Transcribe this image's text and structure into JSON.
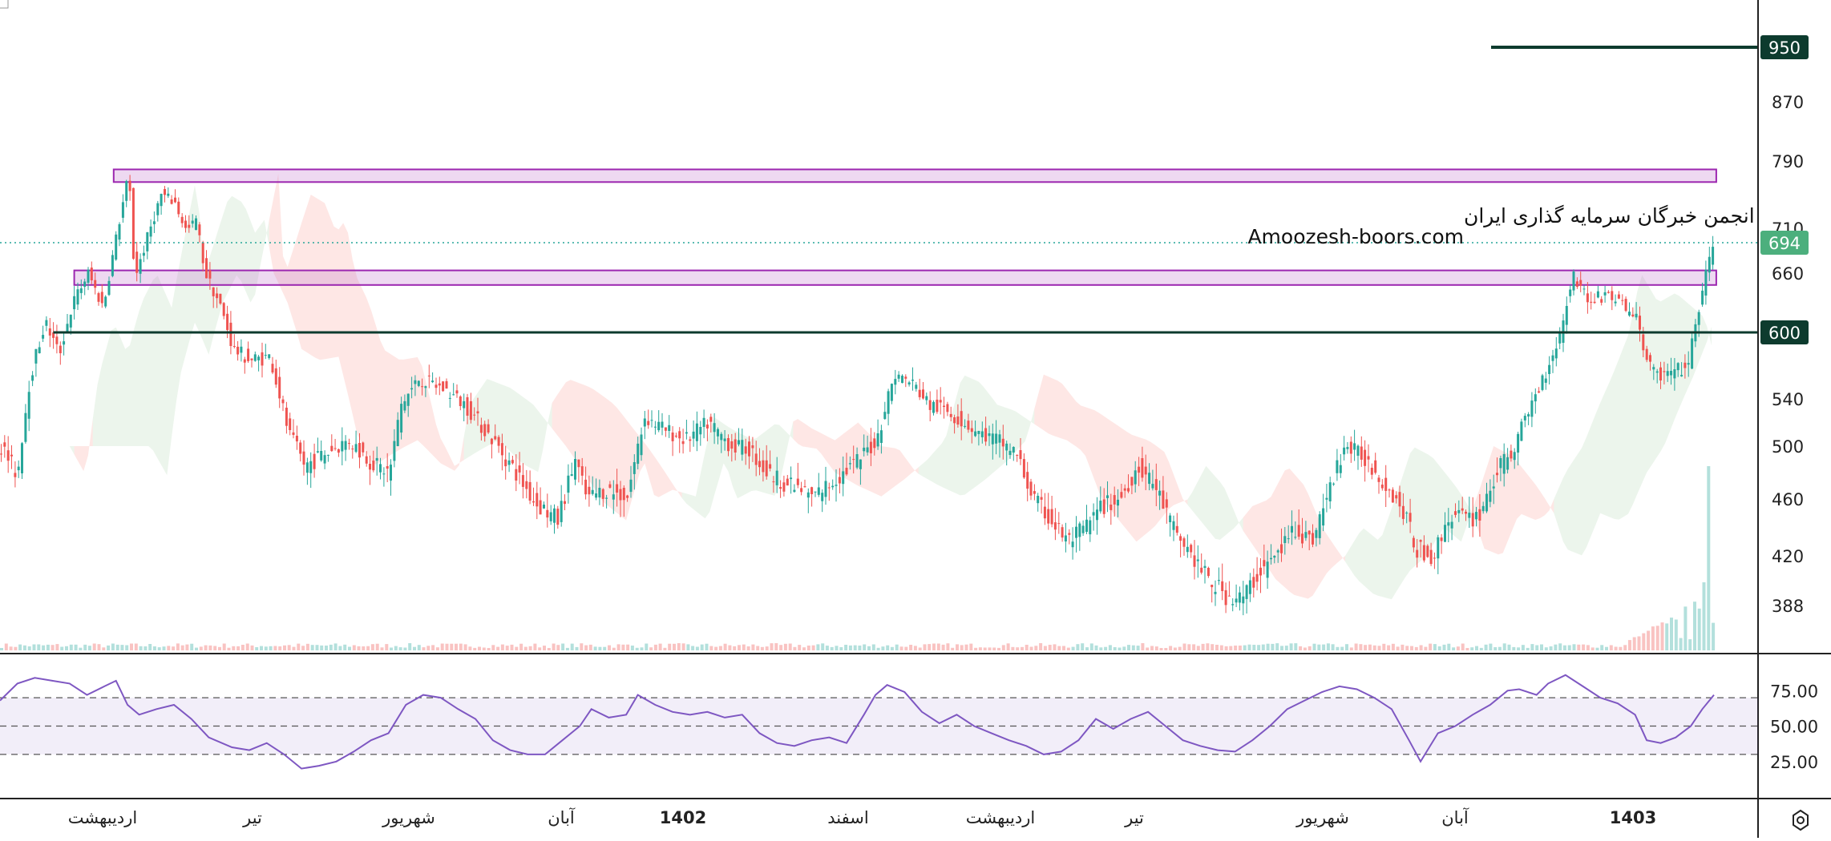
{
  "chart_data": [
    {
      "type": "candlestick",
      "title": "",
      "overlays": [
        "ichimoku-cloud",
        "volume",
        "horizontal-levels"
      ],
      "watermark": {
        "line1": "انجمن خبرگان سرمایه گذاری ایران",
        "line2": "Amoozesh-boors.com"
      },
      "price_axis": {
        "ticks": [
          "870",
          "790",
          "710",
          "660",
          "540",
          "500",
          "460",
          "420",
          "388"
        ],
        "ylim": [
          355,
          975
        ]
      },
      "time_axis": {
        "ticks": [
          "اردیبهشت",
          "تیر",
          "شهریور",
          "آبان",
          "1402",
          "اسفند",
          "اردیبهشت",
          "تیر",
          "شهریور",
          "آبان",
          "1403"
        ],
        "bold_ticks": [
          "1402",
          "1403"
        ]
      },
      "levels": [
        {
          "name": "resistance-950",
          "price": 950,
          "label": "950"
        },
        {
          "name": "support-600",
          "price": 600,
          "label": "600"
        },
        {
          "name": "last-price",
          "price": 694,
          "label": "694"
        }
      ],
      "zones": [
        {
          "name": "upper-zone",
          "from": 765,
          "to": 780
        },
        {
          "name": "middle-zone",
          "from": 648,
          "to": 663
        }
      ],
      "close_path": [
        [
          0,
          500
        ],
        [
          14,
          478
        ],
        [
          25,
          560
        ],
        [
          38,
          610
        ],
        [
          50,
          580
        ],
        [
          62,
          630
        ],
        [
          75,
          660
        ],
        [
          88,
          625
        ],
        [
          100,
          705
        ],
        [
          110,
          775
        ],
        [
          115,
          655
        ],
        [
          125,
          695
        ],
        [
          138,
          750
        ],
        [
          150,
          740
        ],
        [
          160,
          705
        ],
        [
          168,
          720
        ],
        [
          176,
          660
        ],
        [
          188,
          630
        ],
        [
          200,
          585
        ],
        [
          215,
          575
        ],
        [
          232,
          578
        ],
        [
          248,
          510
        ],
        [
          262,
          485
        ],
        [
          280,
          495
        ],
        [
          300,
          505
        ],
        [
          320,
          487
        ],
        [
          335,
          480
        ],
        [
          345,
          535
        ],
        [
          360,
          558
        ],
        [
          380,
          550
        ],
        [
          400,
          535
        ],
        [
          420,
          510
        ],
        [
          440,
          485
        ],
        [
          460,
          458
        ],
        [
          480,
          445
        ],
        [
          495,
          490
        ],
        [
          505,
          460
        ],
        [
          520,
          467
        ],
        [
          540,
          462
        ],
        [
          555,
          525
        ],
        [
          570,
          515
        ],
        [
          590,
          505
        ],
        [
          610,
          520
        ],
        [
          630,
          500
        ],
        [
          645,
          498
        ],
        [
          660,
          480
        ],
        [
          680,
          470
        ],
        [
          700,
          462
        ],
        [
          720,
          475
        ],
        [
          740,
          490
        ],
        [
          755,
          505
        ],
        [
          770,
          562
        ],
        [
          785,
          555
        ],
        [
          800,
          535
        ],
        [
          815,
          530
        ],
        [
          830,
          520
        ],
        [
          845,
          510
        ],
        [
          860,
          505
        ],
        [
          875,
          495
        ],
        [
          890,
          460
        ],
        [
          905,
          445
        ],
        [
          920,
          430
        ],
        [
          935,
          440
        ],
        [
          950,
          455
        ],
        [
          965,
          460
        ],
        [
          980,
          485
        ],
        [
          995,
          470
        ],
        [
          1010,
          440
        ],
        [
          1025,
          422
        ],
        [
          1040,
          405
        ],
        [
          1055,
          395
        ],
        [
          1070,
          392
        ],
        [
          1085,
          410
        ],
        [
          1100,
          420
        ],
        [
          1115,
          440
        ],
        [
          1130,
          430
        ],
        [
          1145,
          465
        ],
        [
          1158,
          500
        ],
        [
          1175,
          492
        ],
        [
          1195,
          470
        ],
        [
          1210,
          450
        ],
        [
          1220,
          425
        ],
        [
          1235,
          420
        ],
        [
          1250,
          450
        ],
        [
          1265,
          445
        ],
        [
          1275,
          450
        ],
        [
          1290,
          480
        ],
        [
          1305,
          500
        ],
        [
          1315,
          525
        ],
        [
          1330,
          560
        ],
        [
          1345,
          600
        ],
        [
          1355,
          660
        ],
        [
          1370,
          630
        ],
        [
          1385,
          640
        ],
        [
          1400,
          625
        ],
        [
          1410,
          615
        ],
        [
          1420,
          570
        ],
        [
          1432,
          560
        ],
        [
          1445,
          565
        ],
        [
          1455,
          570
        ],
        [
          1468,
          650
        ],
        [
          1478,
          694
        ]
      ],
      "rsi": {
        "ticks": [
          "75.00",
          "50.00",
          "25.00"
        ],
        "ylim": [
          0,
          100
        ],
        "bands": [
          70,
          50,
          30
        ],
        "path": [
          [
            0,
            68
          ],
          [
            15,
            80
          ],
          [
            30,
            84
          ],
          [
            45,
            82
          ],
          [
            60,
            80
          ],
          [
            75,
            72
          ],
          [
            90,
            78
          ],
          [
            100,
            82
          ],
          [
            110,
            65
          ],
          [
            120,
            58
          ],
          [
            135,
            62
          ],
          [
            150,
            65
          ],
          [
            165,
            55
          ],
          [
            180,
            42
          ],
          [
            200,
            35
          ],
          [
            215,
            33
          ],
          [
            230,
            38
          ],
          [
            245,
            30
          ],
          [
            260,
            20
          ],
          [
            275,
            22
          ],
          [
            290,
            25
          ],
          [
            305,
            32
          ],
          [
            320,
            40
          ],
          [
            335,
            45
          ],
          [
            350,
            65
          ],
          [
            365,
            72
          ],
          [
            380,
            70
          ],
          [
            395,
            62
          ],
          [
            410,
            55
          ],
          [
            425,
            40
          ],
          [
            440,
            33
          ],
          [
            455,
            30
          ],
          [
            470,
            30
          ],
          [
            485,
            40
          ],
          [
            500,
            50
          ],
          [
            510,
            62
          ],
          [
            525,
            56
          ],
          [
            540,
            58
          ],
          [
            550,
            72
          ],
          [
            565,
            65
          ],
          [
            580,
            60
          ],
          [
            595,
            58
          ],
          [
            610,
            60
          ],
          [
            625,
            56
          ],
          [
            640,
            58
          ],
          [
            655,
            45
          ],
          [
            670,
            38
          ],
          [
            685,
            36
          ],
          [
            700,
            40
          ],
          [
            715,
            42
          ],
          [
            730,
            38
          ],
          [
            745,
            58
          ],
          [
            755,
            72
          ],
          [
            765,
            79
          ],
          [
            780,
            74
          ],
          [
            795,
            60
          ],
          [
            810,
            52
          ],
          [
            825,
            58
          ],
          [
            840,
            50
          ],
          [
            855,
            45
          ],
          [
            870,
            40
          ],
          [
            885,
            36
          ],
          [
            900,
            30
          ],
          [
            915,
            32
          ],
          [
            930,
            40
          ],
          [
            945,
            55
          ],
          [
            960,
            48
          ],
          [
            975,
            55
          ],
          [
            990,
            60
          ],
          [
            1005,
            50
          ],
          [
            1020,
            40
          ],
          [
            1035,
            36
          ],
          [
            1050,
            33
          ],
          [
            1065,
            32
          ],
          [
            1080,
            40
          ],
          [
            1095,
            50
          ],
          [
            1110,
            62
          ],
          [
            1125,
            68
          ],
          [
            1140,
            74
          ],
          [
            1155,
            78
          ],
          [
            1170,
            76
          ],
          [
            1185,
            70
          ],
          [
            1200,
            62
          ],
          [
            1215,
            40
          ],
          [
            1225,
            25
          ],
          [
            1240,
            45
          ],
          [
            1255,
            50
          ],
          [
            1270,
            58
          ],
          [
            1285,
            65
          ],
          [
            1300,
            75
          ],
          [
            1310,
            76
          ],
          [
            1325,
            72
          ],
          [
            1335,
            80
          ],
          [
            1350,
            86
          ],
          [
            1365,
            78
          ],
          [
            1380,
            70
          ],
          [
            1395,
            66
          ],
          [
            1410,
            58
          ],
          [
            1420,
            40
          ],
          [
            1432,
            38
          ],
          [
            1445,
            42
          ],
          [
            1458,
            50
          ],
          [
            1468,
            62
          ],
          [
            1478,
            72
          ]
        ]
      }
    }
  ]
}
